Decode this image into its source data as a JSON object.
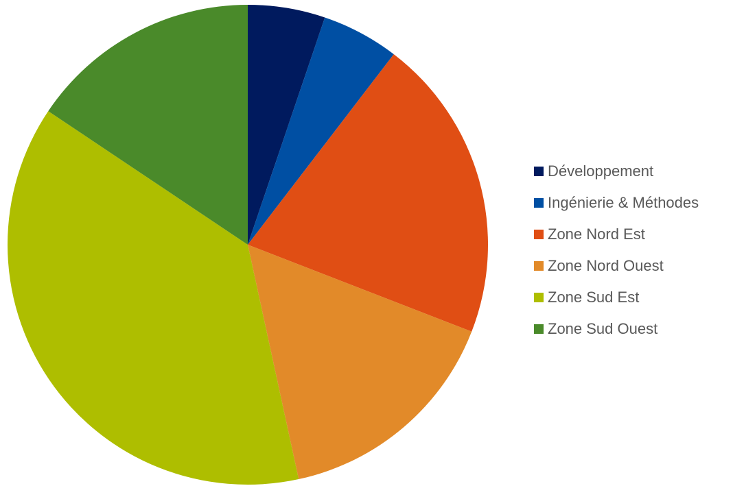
{
  "chart_data": {
    "type": "pie",
    "start_angle": "12 o'clock, clockwise",
    "legend_position": "right",
    "slices": [
      {
        "name": "Développement",
        "value": 5.2,
        "color": "#001A5E"
      },
      {
        "name": "Ingénierie & Méthodes",
        "value": 5.2,
        "color": "#004FA3"
      },
      {
        "name": "Zone Nord Est",
        "value": 20.5,
        "color": "#E04E14"
      },
      {
        "name": "Zone Nord Ouest",
        "value": 15.7,
        "color": "#E28A29"
      },
      {
        "name": "Zone Sud Est",
        "value": 37.8,
        "color": "#AEBE00"
      },
      {
        "name": "Zone Sud Ouest",
        "value": 15.6,
        "color": "#4A8A2A"
      }
    ]
  }
}
